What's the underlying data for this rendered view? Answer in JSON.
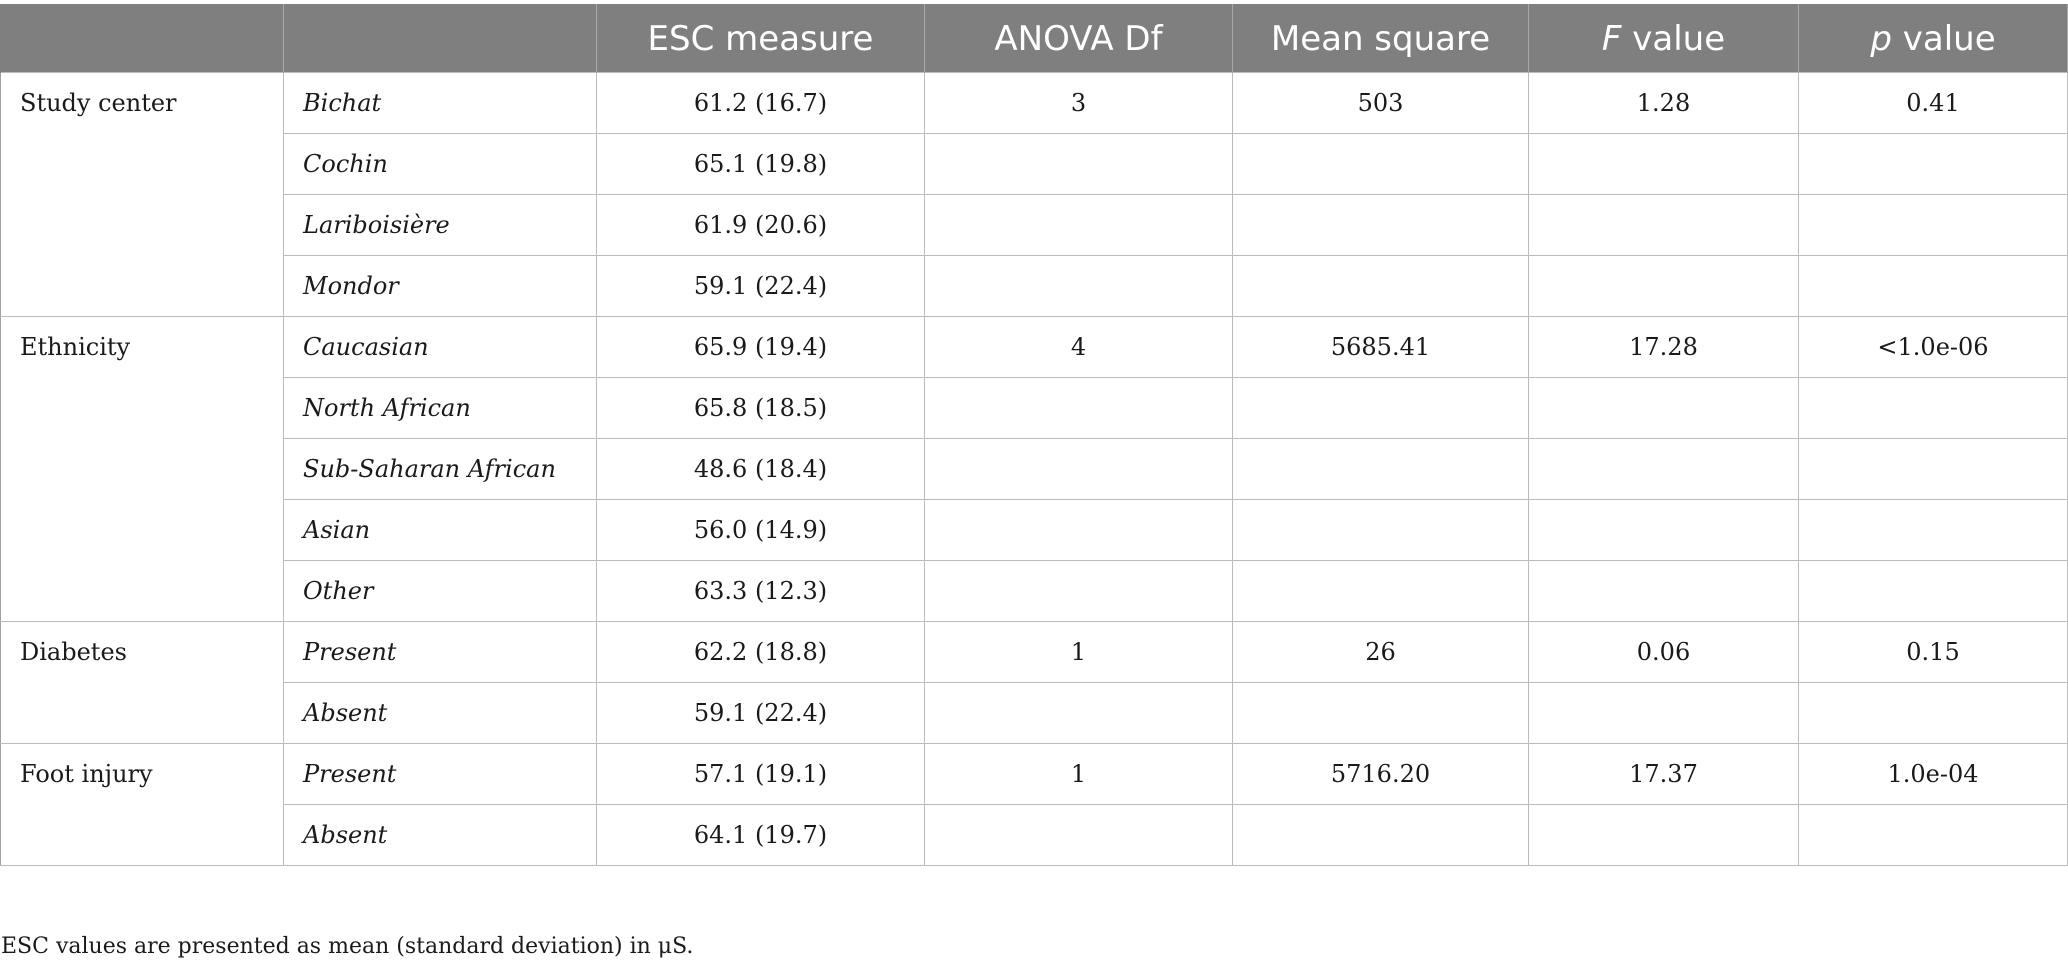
{
  "table": {
    "headers": [
      "",
      "",
      "ESC measure",
      "ANOVA Df",
      "Mean square",
      "value",
      "value"
    ],
    "header_prefix_italic": {
      "f": "F",
      "p": "p"
    },
    "groups": [
      {
        "name": "Study center",
        "df": "3",
        "mean_square": "503",
        "f_value": "1.28",
        "p_value": "0.41",
        "rows": [
          {
            "level": "Bichat",
            "esc": "61.2 (16.7)"
          },
          {
            "level": "Cochin",
            "esc": "65.1 (19.8)"
          },
          {
            "level": "Lariboisière",
            "esc": "61.9 (20.6)"
          },
          {
            "level": "Mondor",
            "esc": "59.1 (22.4)"
          }
        ]
      },
      {
        "name": "Ethnicity",
        "df": "4",
        "mean_square": "5685.41",
        "f_value": "17.28",
        "p_value": "<1.0e-06",
        "rows": [
          {
            "level": "Caucasian",
            "esc": "65.9 (19.4)"
          },
          {
            "level": "North African",
            "esc": "65.8 (18.5)"
          },
          {
            "level": "Sub-Saharan African",
            "esc": "48.6 (18.4)"
          },
          {
            "level": "Asian",
            "esc": "56.0 (14.9)"
          },
          {
            "level": "Other",
            "esc": "63.3 (12.3)"
          }
        ]
      },
      {
        "name": "Diabetes",
        "df": "1",
        "mean_square": "26",
        "f_value": "0.06",
        "p_value": "0.15",
        "rows": [
          {
            "level": "Present",
            "esc": "62.2 (18.8)"
          },
          {
            "level": "Absent",
            "esc": "59.1 (22.4)"
          }
        ]
      },
      {
        "name": "Foot injury",
        "df": "1",
        "mean_square": "5716.20",
        "f_value": "17.37",
        "p_value": "1.0e-04",
        "rows": [
          {
            "level": "Present",
            "esc": "57.1 (19.1)"
          },
          {
            "level": "Absent",
            "esc": "64.1 (19.7)"
          }
        ]
      }
    ]
  },
  "footnote": "ESC values are presented as mean (standard deviation) in μS.",
  "colors": {
    "header_bg": "#7f7f7f",
    "header_text": "#ffffff",
    "grid": "#bcbcbc"
  }
}
